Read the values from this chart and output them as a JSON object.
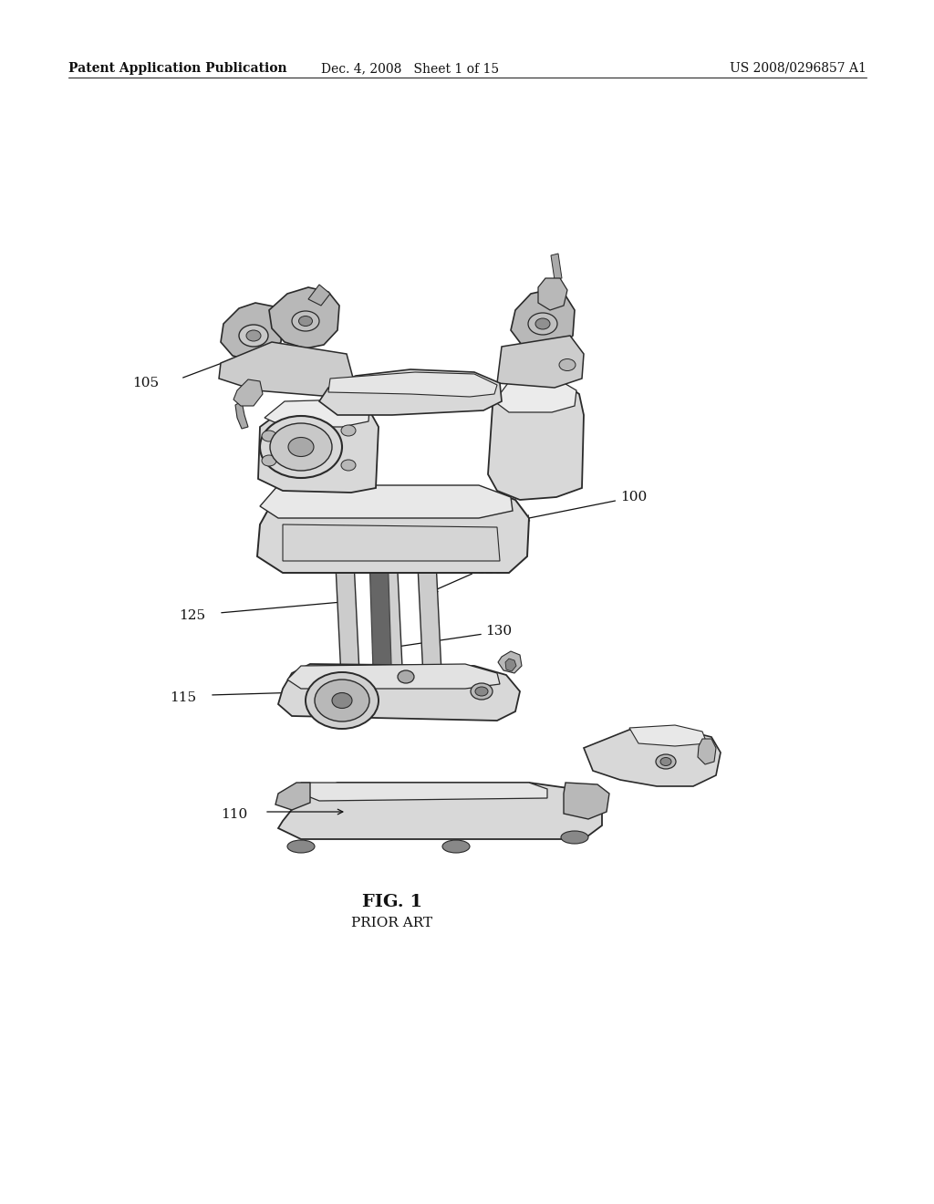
{
  "background_color": "#ffffff",
  "page_width": 10.24,
  "page_height": 13.2,
  "header_text_left": "Patent Application Publication",
  "header_text_mid": "Dec. 4, 2008   Sheet 1 of 15",
  "header_text_right": "US 2008/0296857 A1",
  "header_fontsize": 10,
  "fig_label": "FIG. 1",
  "fig_sublabel": "PRIOR ART",
  "fig_label_fontsize": 14,
  "fig_sublabel_fontsize": 11,
  "line_color": "#2a2a2a",
  "text_color": "#111111",
  "gray_light": "#d8d8d8",
  "gray_mid": "#b8b8b8",
  "gray_dark": "#888888",
  "gray_very_dark": "#555555"
}
